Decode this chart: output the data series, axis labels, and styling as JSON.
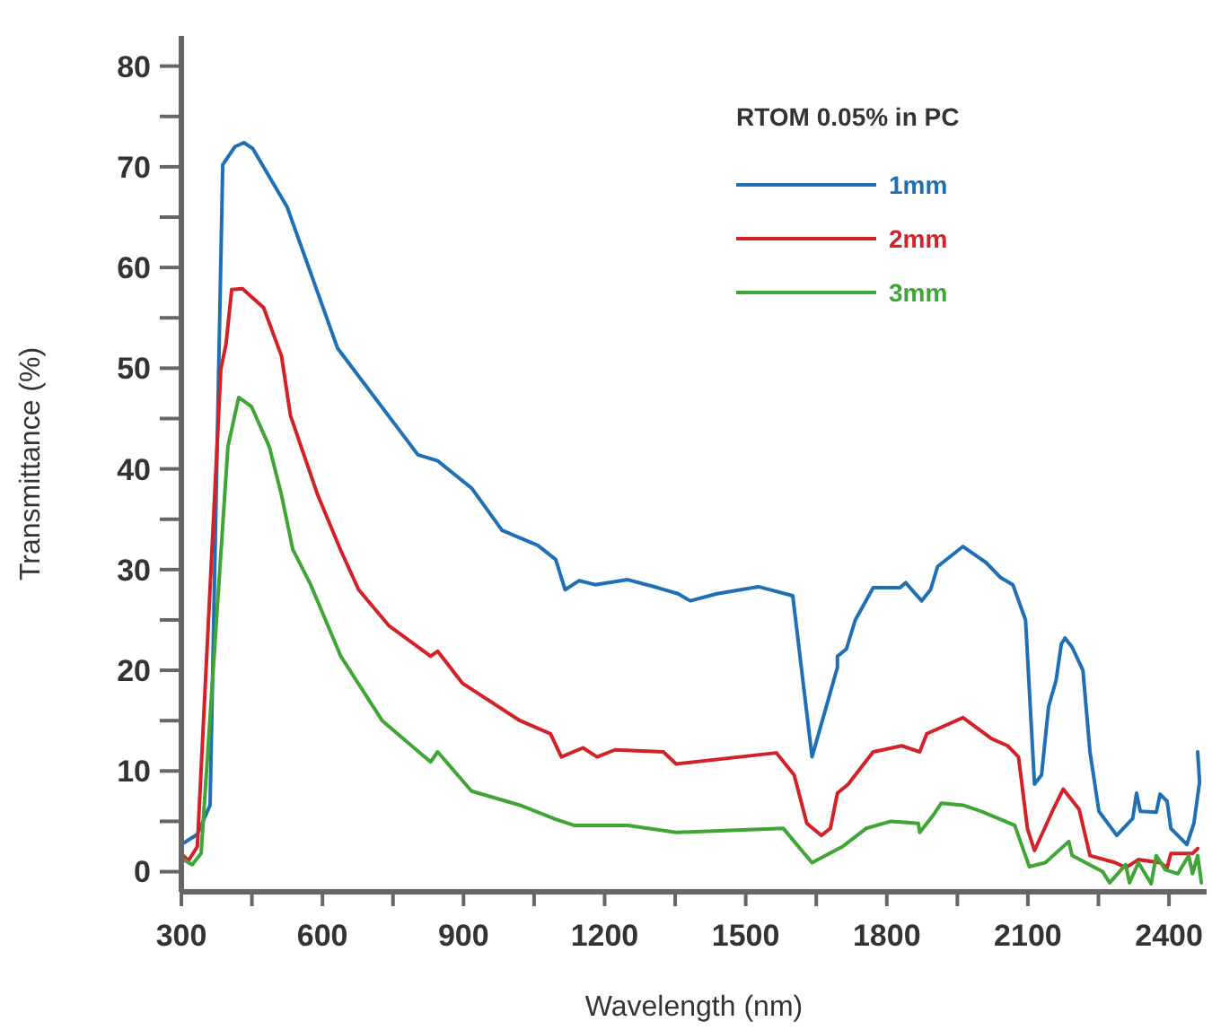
{
  "chart_data": {
    "type": "line",
    "xlabel": "Wavelength (nm)",
    "ylabel": "Transmittance (%)",
    "legend_title": "RTOM 0.05% in PC",
    "legend": "top right",
    "grid": false,
    "line_style": "solid",
    "marker": "none",
    "xlim": [
      300,
      2480
    ],
    "ylim": [
      -2,
      83
    ],
    "xticks": [
      300,
      {
        "value": 450,
        "label": null
      },
      600,
      {
        "value": 750,
        "label": null
      },
      900,
      {
        "value": 1050,
        "label": null
      },
      1200,
      {
        "value": 1350,
        "label": null
      },
      1500,
      {
        "value": 1650,
        "label": null
      },
      1800,
      {
        "value": 1950,
        "label": null
      },
      2100,
      {
        "value": 2250,
        "label": null
      },
      2400
    ],
    "yticks": [
      0,
      {
        "value": 5,
        "label": null
      },
      10,
      {
        "value": 15,
        "label": null
      },
      20,
      {
        "value": 25,
        "label": null
      },
      30,
      {
        "value": 35,
        "label": null
      },
      40,
      {
        "value": 45,
        "label": null
      },
      50,
      {
        "value": 55,
        "label": null
      },
      60,
      {
        "value": 65,
        "label": null
      },
      70,
      {
        "value": 75,
        "label": null
      },
      80
    ],
    "series": [
      {
        "name": "1mm",
        "color": "#1f6fb5",
        "x": [
          300,
          334,
          361,
          388,
          414,
          433,
          452,
          525,
          632,
          803,
          845,
          917,
          982,
          1058,
          1096,
          1116,
          1146,
          1180,
          1249,
          1313,
          1356,
          1382,
          1439,
          1527,
          1600,
          1641,
          1695,
          1695,
          1714,
          1733,
          1771,
          1828,
          1840,
          1874,
          1893,
          1908,
          1962,
          2011,
          2042,
          2068,
          2095,
          2114,
          2129,
          2144,
          2160,
          2171,
          2179,
          2194,
          2217,
          2232,
          2251,
          2289,
          2323,
          2331,
          2339,
          2373,
          2381,
          2396,
          2404,
          2438,
          2453,
          2465,
          2461
        ],
        "values": [
          2.7,
          3.7,
          6.6,
          70.2,
          72,
          72.4,
          71.8,
          66,
          52,
          41.4,
          40.8,
          38.1,
          33.9,
          32.4,
          31,
          28,
          28.9,
          28.5,
          29,
          28.2,
          27.6,
          26.9,
          27.6,
          28.3,
          27.4,
          11.4,
          20.3,
          21.4,
          22.1,
          25,
          28.2,
          28.2,
          28.7,
          26.9,
          28,
          30.3,
          32.3,
          30.7,
          29.2,
          28.5,
          25,
          8.7,
          9.6,
          16.4,
          19,
          22.6,
          23.2,
          22.3,
          20,
          11.9,
          6,
          3.6,
          5.3,
          7.8,
          6,
          5.9,
          7.7,
          7,
          4.3,
          2.7,
          4.8,
          8.9,
          11.9
        ]
      },
      {
        "name": "2mm",
        "color": "#d42027",
        "x": [
          304,
          315,
          334,
          384,
          395,
          407,
          430,
          475,
          513,
          532,
          590,
          639,
          677,
          742,
          830,
          845,
          898,
          1020,
          1085,
          1108,
          1154,
          1184,
          1222,
          1325,
          1352,
          1565,
          1603,
          1630,
          1661,
          1680,
          1695,
          1718,
          1771,
          1832,
          1870,
          1885,
          1962,
          2023,
          2057,
          2080,
          2099,
          2114,
          2152,
          2175,
          2209,
          2232,
          2286,
          2308,
          2335,
          2381,
          2396,
          2404,
          2450,
          2461
        ],
        "values": [
          1.6,
          1.1,
          2.5,
          49.9,
          52.4,
          57.8,
          57.9,
          56,
          51.2,
          45.3,
          37.4,
          31.9,
          28,
          24.4,
          21.4,
          21.9,
          18.7,
          15,
          13.7,
          11.4,
          12.3,
          11.4,
          12.1,
          11.9,
          10.7,
          11.8,
          9.6,
          4.8,
          3.6,
          4.3,
          7.8,
          8.7,
          11.9,
          12.5,
          11.9,
          13.7,
          15.3,
          13.2,
          12.5,
          11.4,
          4.3,
          2.1,
          6,
          8.2,
          6.2,
          1.6,
          0.9,
          0.4,
          1.2,
          0.9,
          0.4,
          1.8,
          1.8,
          2.3
        ]
      },
      {
        "name": "3mm",
        "color": "#3fa535",
        "x": [
          304,
          323,
          342,
          399,
          422,
          449,
          487,
          513,
          537,
          575,
          639,
          727,
          830,
          845,
          917,
          1020,
          1096,
          1135,
          1249,
          1352,
          1580,
          1603,
          1641,
          1706,
          1756,
          1809,
          1867,
          1870,
          1897,
          1916,
          1962,
          2000,
          2072,
          2103,
          2137,
          2187,
          2194,
          2259,
          2274,
          2308,
          2316,
          2335,
          2362,
          2373,
          2392,
          2419,
          2442,
          2450,
          2461,
          2469
        ],
        "values": [
          1.2,
          0.7,
          1.8,
          42.2,
          47.1,
          46.2,
          42.2,
          37.4,
          32,
          28.5,
          21.4,
          15,
          10.9,
          11.9,
          8,
          6.6,
          5.2,
          4.6,
          4.6,
          3.9,
          4.3,
          3,
          0.9,
          2.5,
          4.3,
          5,
          4.8,
          3.9,
          5.5,
          6.8,
          6.6,
          6,
          4.6,
          0.5,
          0.9,
          3,
          1.6,
          0,
          -1.1,
          0.7,
          -1.1,
          0.9,
          -1.2,
          1.6,
          0.2,
          -0.2,
          1.6,
          -0.2,
          1.6,
          -1.1
        ]
      }
    ]
  }
}
